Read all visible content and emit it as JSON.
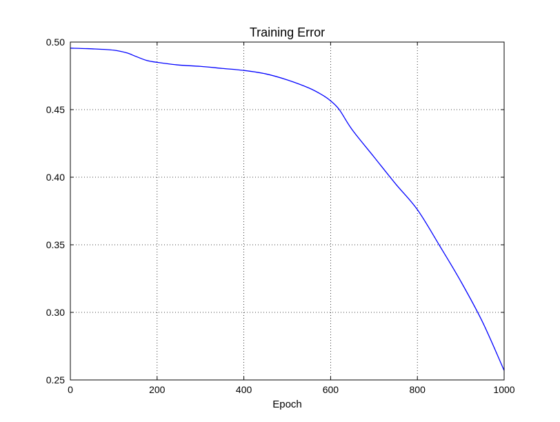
{
  "chart_data": {
    "type": "line",
    "title": "Training Error",
    "xlabel": "Epoch",
    "ylabel": "",
    "xlim": [
      0,
      1000
    ],
    "ylim": [
      0.25,
      0.5
    ],
    "xticks": [
      0,
      200,
      400,
      600,
      800,
      1000
    ],
    "xtick_labels": [
      "0",
      "200",
      "400",
      "600",
      "800",
      "1000"
    ],
    "yticks": [
      0.25,
      0.3,
      0.35,
      0.4,
      0.45,
      0.5
    ],
    "ytick_labels": [
      "0.25",
      "0.30",
      "0.35",
      "0.40",
      "0.45",
      "0.50"
    ],
    "grid": true,
    "legend": "none",
    "series": [
      {
        "color": "#0000ff",
        "x": [
          0,
          50,
          100,
          130,
          150,
          175,
          200,
          250,
          300,
          350,
          400,
          450,
          500,
          550,
          580,
          600,
          620,
          650,
          700,
          750,
          800,
          850,
          900,
          950,
          1000
        ],
        "y": [
          0.4955,
          0.495,
          0.494,
          0.492,
          0.4895,
          0.4865,
          0.485,
          0.483,
          0.482,
          0.4805,
          0.479,
          0.4765,
          0.472,
          0.466,
          0.461,
          0.4565,
          0.45,
          0.435,
          0.415,
          0.395,
          0.376,
          0.35,
          0.323,
          0.293,
          0.257
        ]
      }
    ]
  }
}
